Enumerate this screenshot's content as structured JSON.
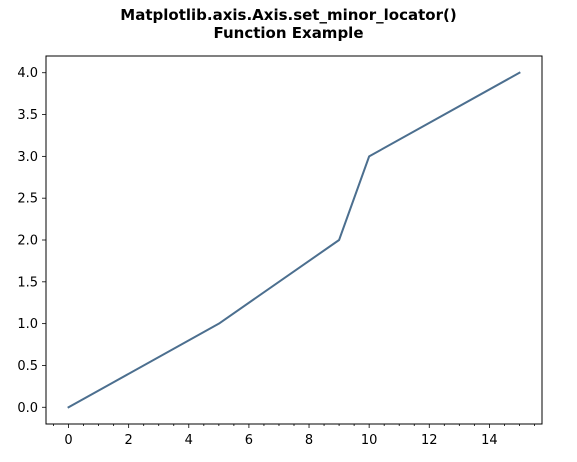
{
  "chart_data": {
    "type": "line",
    "title_lines": [
      "Matplotlib.axis.Axis.set_minor_locator()",
      "Function Example"
    ],
    "xlabel": "",
    "ylabel": "",
    "x": [
      0,
      5,
      9,
      10,
      15
    ],
    "series": [
      {
        "values": [
          0,
          1,
          2,
          3,
          4
        ],
        "color": "#4c6f8f"
      }
    ],
    "xlim": [
      -0.75,
      15.75
    ],
    "ylim": [
      -0.2,
      4.2
    ],
    "x_major_ticks": [
      0,
      2,
      4,
      6,
      8,
      10,
      12,
      14
    ],
    "x_tick_labels": [
      "0",
      "2",
      "4",
      "6",
      "8",
      "10",
      "12",
      "14"
    ],
    "x_minor_tick_step": 0.5,
    "y_major_ticks": [
      0.0,
      0.5,
      1.0,
      1.5,
      2.0,
      2.5,
      3.0,
      3.5,
      4.0
    ],
    "y_tick_labels": [
      "0.0",
      "0.5",
      "1.0",
      "1.5",
      "2.0",
      "2.5",
      "3.0",
      "3.5",
      "4.0"
    ],
    "grid": false,
    "legend": "none"
  }
}
